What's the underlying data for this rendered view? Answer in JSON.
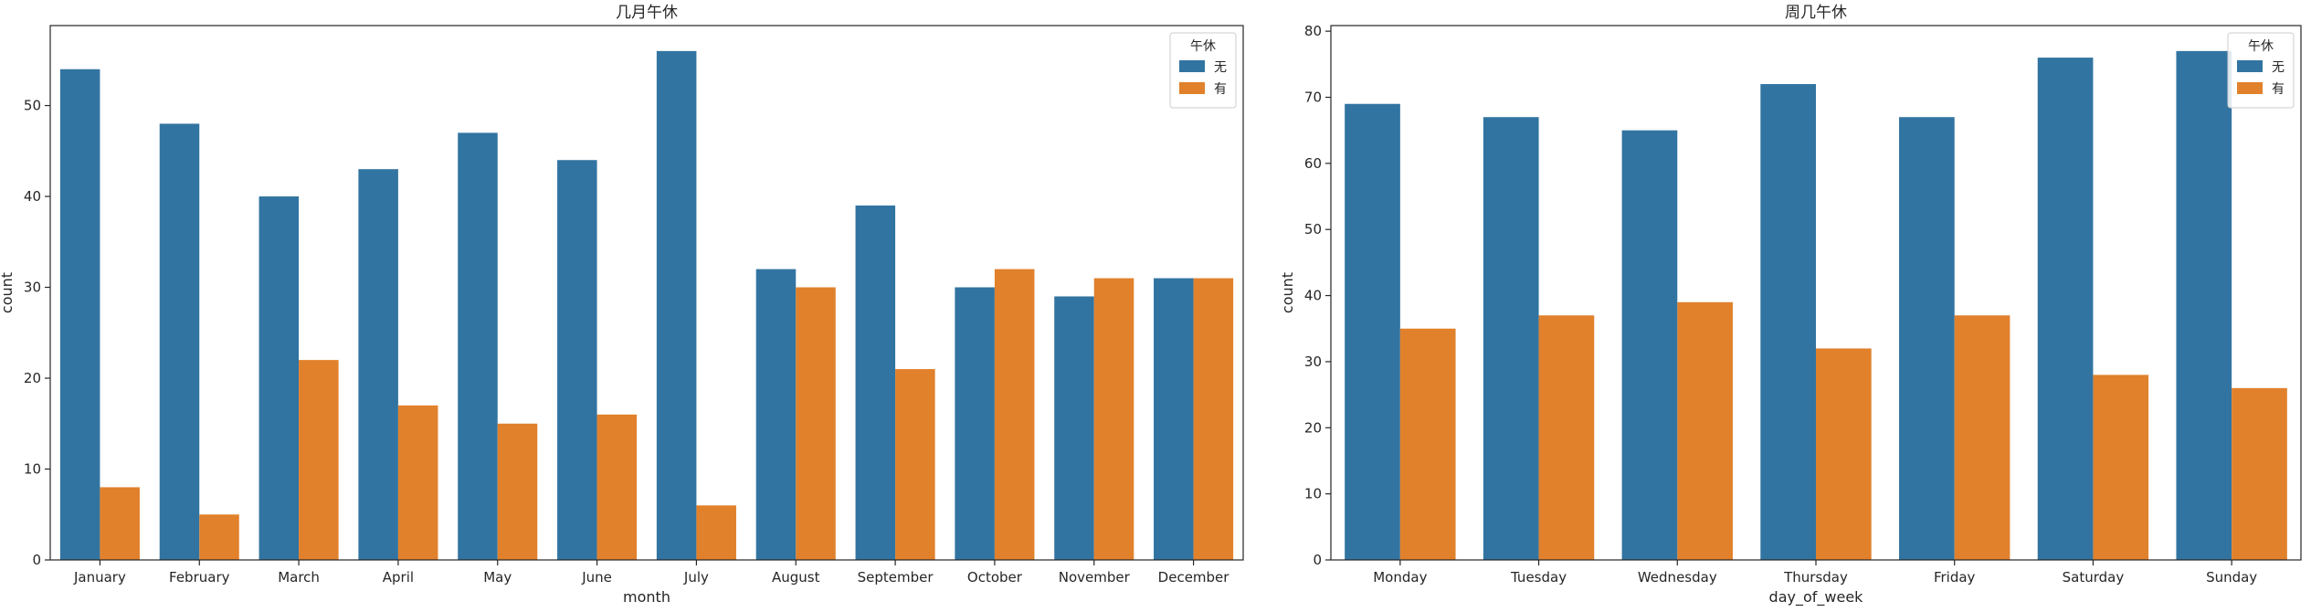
{
  "colors": {
    "series_0": "#3274a1",
    "series_1": "#e1812c",
    "axis": "#262626",
    "legend_border": "#cccccc"
  },
  "chart_data": [
    {
      "type": "bar",
      "title": "几月午休",
      "xlabel": "month",
      "ylabel": "count",
      "ylim": [
        0,
        58.8
      ],
      "yticks": [
        0,
        10,
        20,
        30,
        40,
        50
      ],
      "grid": false,
      "legend": {
        "title": "午休",
        "position": "top-right"
      },
      "categories": [
        "January",
        "February",
        "March",
        "April",
        "May",
        "June",
        "July",
        "August",
        "September",
        "October",
        "November",
        "December"
      ],
      "series": [
        {
          "name": "无",
          "values": [
            54,
            48,
            40,
            43,
            47,
            44,
            56,
            32,
            39,
            30,
            29,
            31
          ]
        },
        {
          "name": "有",
          "values": [
            8,
            5,
            22,
            17,
            15,
            16,
            6,
            30,
            21,
            32,
            31,
            31
          ]
        }
      ]
    },
    {
      "type": "bar",
      "title": "周几午休",
      "xlabel": "day_of_week",
      "ylabel": "count",
      "ylim": [
        0,
        80.85
      ],
      "yticks": [
        0,
        10,
        20,
        30,
        40,
        50,
        60,
        70,
        80
      ],
      "grid": false,
      "legend": {
        "title": "午休",
        "position": "top-right"
      },
      "categories": [
        "Monday",
        "Tuesday",
        "Wednesday",
        "Thursday",
        "Friday",
        "Saturday",
        "Sunday"
      ],
      "series": [
        {
          "name": "无",
          "values": [
            69,
            67,
            65,
            72,
            67,
            76,
            77
          ]
        },
        {
          "name": "有",
          "values": [
            35,
            37,
            39,
            32,
            37,
            28,
            26
          ]
        }
      ]
    }
  ]
}
